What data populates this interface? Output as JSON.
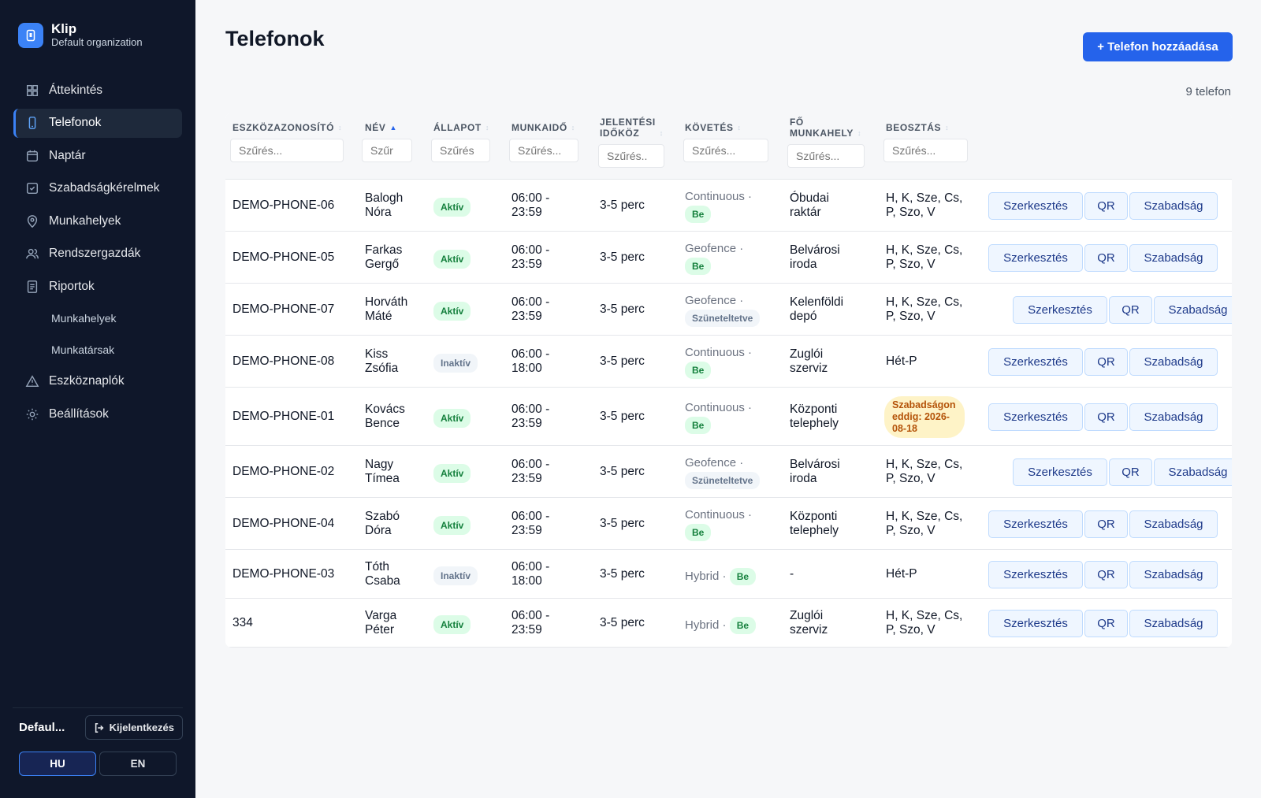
{
  "app": {
    "name": "Klip",
    "org": "Default organization"
  },
  "nav": {
    "items": [
      {
        "label": "Áttekintés",
        "icon": "grid-icon"
      },
      {
        "label": "Telefonok",
        "icon": "phone-icon",
        "active": true
      },
      {
        "label": "Naptár",
        "icon": "calendar-icon"
      },
      {
        "label": "Szabadságkérelmek",
        "icon": "calendar-check-icon"
      },
      {
        "label": "Munkahelyek",
        "icon": "map-pin-icon"
      },
      {
        "label": "Rendszergazdák",
        "icon": "users-icon"
      },
      {
        "label": "Riportok",
        "icon": "report-icon"
      }
    ],
    "sub_items": [
      "Munkahelyek",
      "Munkatársak"
    ],
    "items_after": [
      {
        "label": "Eszköznaplók",
        "icon": "warning-icon"
      },
      {
        "label": "Beállítások",
        "icon": "gear-icon"
      }
    ]
  },
  "footer": {
    "user": "Defaul...",
    "logout": "Kijelentkezés",
    "langs": [
      "HU",
      "EN"
    ],
    "active_lang": "HU"
  },
  "page": {
    "title": "Telefonok",
    "add_button": "+ Telefon hozzáadása",
    "count": "9 telefon"
  },
  "columns": [
    {
      "label": "ESZKÖZAZONOSÍTÓ",
      "placeholder": "Szűrés..."
    },
    {
      "label": "NÉV",
      "placeholder": "Szűr",
      "sort": "asc"
    },
    {
      "label": "ÁLLAPOT",
      "placeholder": "Szűrés"
    },
    {
      "label": "MUNKAIDŐ",
      "placeholder": "Szűrés..."
    },
    {
      "label": "JELENTÉSI IDŐKÖZ",
      "label_lines": [
        "JELENTÉSI",
        "IDŐKÖZ"
      ],
      "placeholder": "Szűrés.."
    },
    {
      "label": "KÖVETÉS",
      "placeholder": "Szűrés..."
    },
    {
      "label": "FŐ MUNKAHELY",
      "label_lines": [
        "FŐ",
        "MUNKAHELY"
      ],
      "placeholder": "Szűrés..."
    },
    {
      "label": "BEOSZTÁS",
      "placeholder": "Szűrés..."
    }
  ],
  "actions": {
    "edit": "Szerkesztés",
    "qr": "QR",
    "leave": "Szabadság"
  },
  "rows": [
    {
      "id": "DEMO-PHONE-06",
      "name": [
        "Balogh",
        "Nóra"
      ],
      "status": "Aktív",
      "hours": [
        "06:00 -",
        "23:59"
      ],
      "interval": "3-5 perc",
      "tracking": "Continuous ·",
      "tracking_state": "Be",
      "workplace": [
        "Óbudai",
        "raktár"
      ],
      "schedule": [
        "H, K, Sze, Cs,",
        "P, Szo, V"
      ]
    },
    {
      "id": "DEMO-PHONE-05",
      "name": [
        "Farkas",
        "Gergő"
      ],
      "status": "Aktív",
      "hours": [
        "06:00 -",
        "23:59"
      ],
      "interval": "3-5 perc",
      "tracking": "Geofence ·",
      "tracking_state": "Be",
      "workplace": [
        "Belvárosi",
        "iroda"
      ],
      "schedule": [
        "H, K, Sze, Cs,",
        "P, Szo, V"
      ]
    },
    {
      "id": "DEMO-PHONE-07",
      "name": [
        "Horváth",
        "Máté"
      ],
      "status": "Aktív",
      "hours": [
        "06:00 -",
        "23:59"
      ],
      "interval": "3-5 perc",
      "tracking": "Geofence ·",
      "tracking_state": "Szüneteltetve",
      "workplace": [
        "Kelenföldi",
        "depó"
      ],
      "schedule": [
        "H, K, Sze, Cs,",
        "P, Szo, V"
      ]
    },
    {
      "id": "DEMO-PHONE-08",
      "name": [
        "Kiss",
        "Zsófia"
      ],
      "status": "Inaktív",
      "hours": [
        "06:00 -",
        "18:00"
      ],
      "interval": "3-5 perc",
      "tracking": "Continuous ·",
      "tracking_state": "Be",
      "workplace": [
        "Zuglói",
        "szerviz"
      ],
      "schedule": [
        "Hét-P"
      ]
    },
    {
      "id": "DEMO-PHONE-01",
      "name": [
        "Kovács",
        "Bence"
      ],
      "status": "Aktív",
      "hours": [
        "06:00 -",
        "23:59"
      ],
      "interval": "3-5 perc",
      "tracking": "Continuous ·",
      "tracking_state": "Be",
      "workplace": [
        "Központi",
        "telephely"
      ],
      "leave": "Szabadságon eddig: 2026-08-18"
    },
    {
      "id": "DEMO-PHONE-02",
      "name": [
        "Nagy",
        "Tímea"
      ],
      "status": "Aktív",
      "hours": [
        "06:00 -",
        "23:59"
      ],
      "interval": "3-5 perc",
      "tracking": "Geofence ·",
      "tracking_state": "Szüneteltetve",
      "workplace": [
        "Belvárosi",
        "iroda"
      ],
      "schedule": [
        "H, K, Sze, Cs,",
        "P, Szo, V"
      ]
    },
    {
      "id": "DEMO-PHONE-04",
      "name": [
        "Szabó",
        "Dóra"
      ],
      "status": "Aktív",
      "hours": [
        "06:00 -",
        "23:59"
      ],
      "interval": "3-5 perc",
      "tracking": "Continuous ·",
      "tracking_state": "Be",
      "workplace": [
        "Központi",
        "telephely"
      ],
      "schedule": [
        "H, K, Sze, Cs,",
        "P, Szo, V"
      ]
    },
    {
      "id": "DEMO-PHONE-03",
      "name": [
        "Tóth",
        "Csaba"
      ],
      "status": "Inaktív",
      "hours": [
        "06:00 -",
        "18:00"
      ],
      "interval": "3-5 perc",
      "tracking": "Hybrid ·",
      "tracking_state": "Be",
      "tracking_inline": true,
      "workplace": [
        "-"
      ],
      "schedule": [
        "Hét-P"
      ]
    },
    {
      "id": "334",
      "name": [
        "Varga",
        "Péter"
      ],
      "status": "Aktív",
      "hours": [
        "06:00 -",
        "23:59"
      ],
      "interval": "3-5 perc",
      "tracking": "Hybrid ·",
      "tracking_state": "Be",
      "tracking_inline": true,
      "workplace": [
        "Zuglói",
        "szerviz"
      ],
      "schedule": [
        "H, K, Sze, Cs,",
        "P, Szo, V"
      ]
    }
  ]
}
